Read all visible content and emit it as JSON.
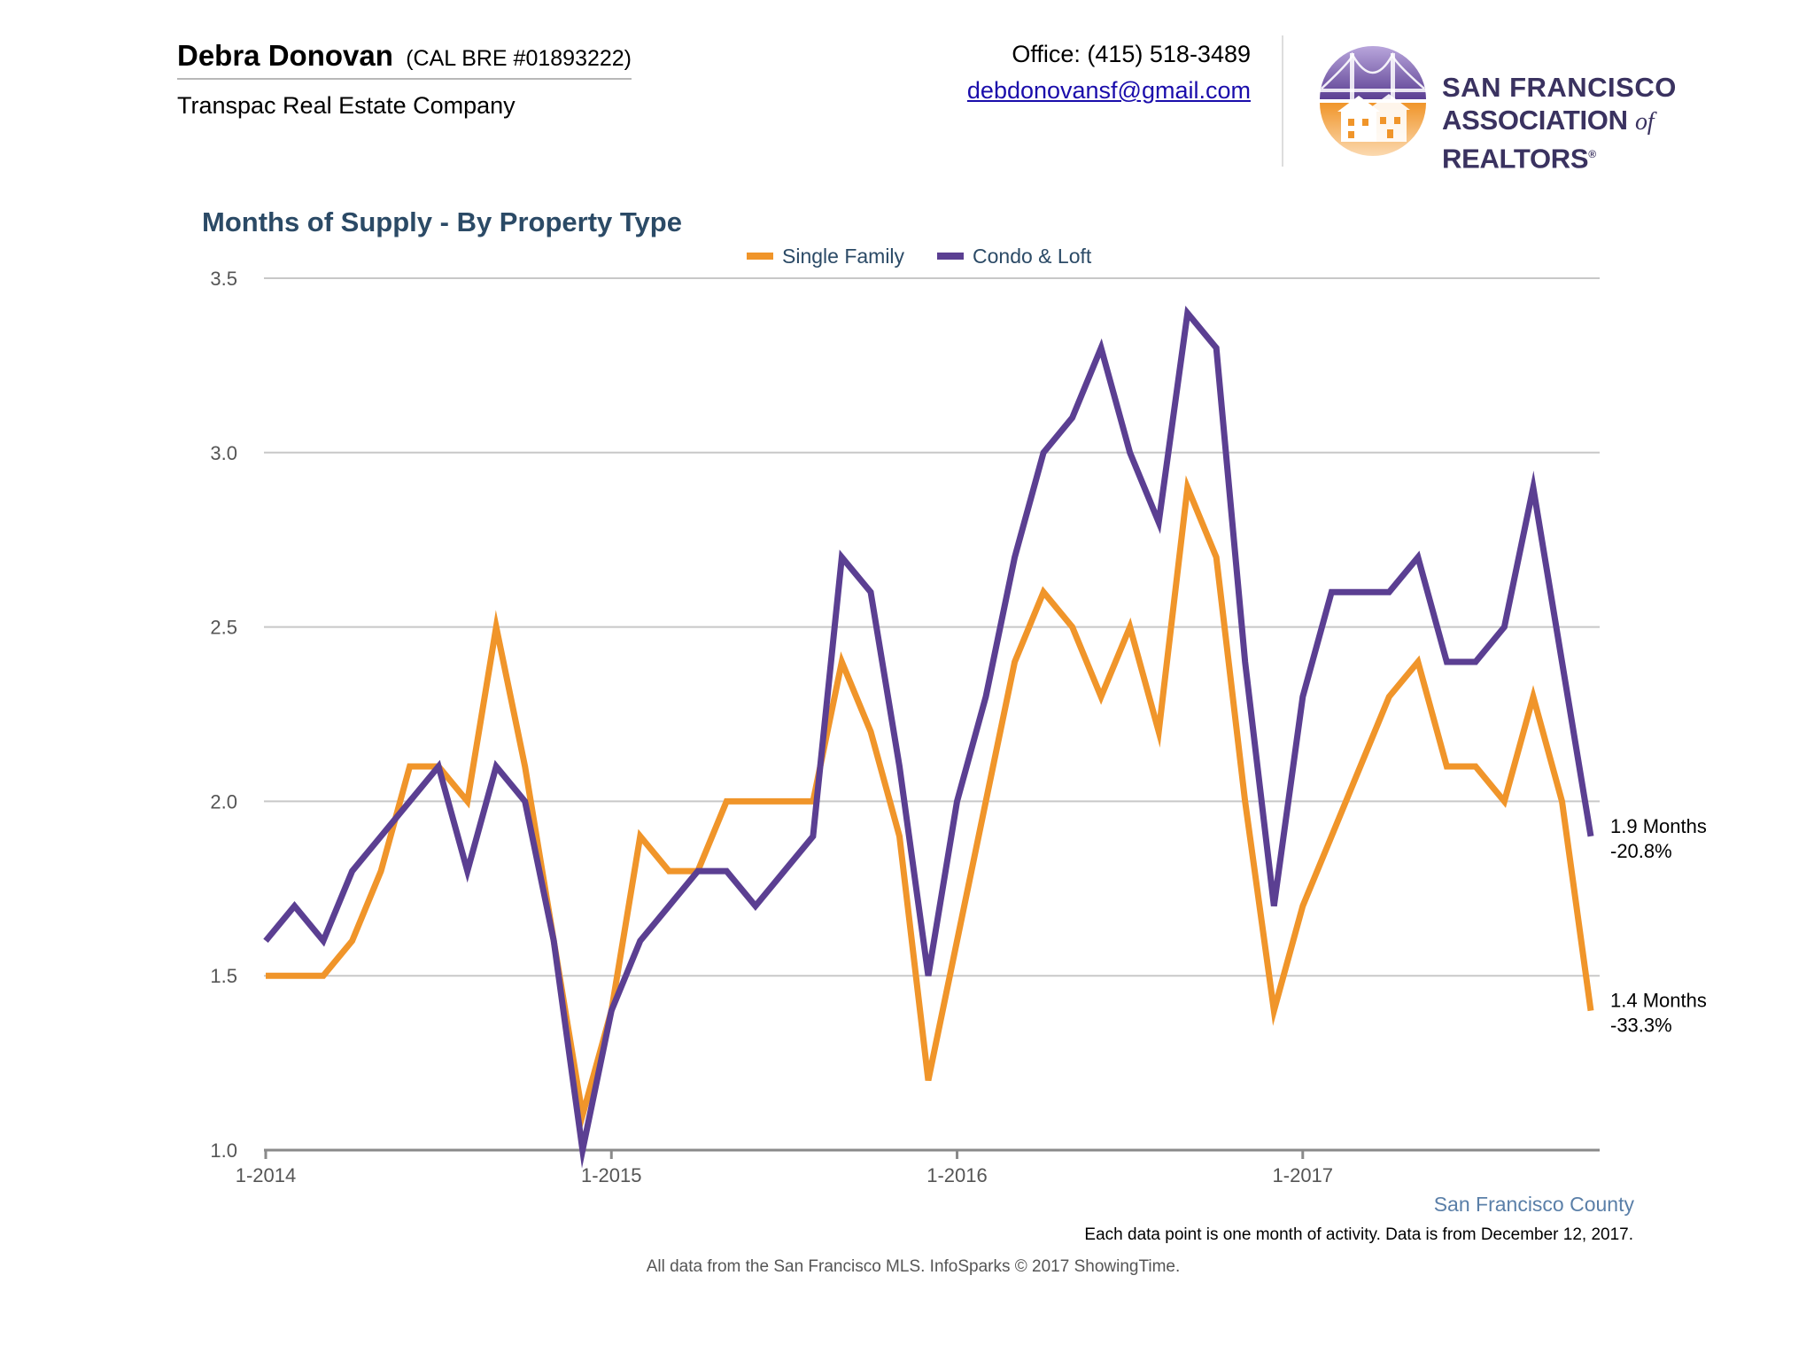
{
  "header": {
    "agent_name": "Debra Donovan",
    "agent_license": "(CAL BRE #01893222)",
    "agent_company": "Transpac Real Estate Company",
    "office_phone": "Office: (415) 518-3489",
    "email": "debdonovansf@gmail.com",
    "logo_line1": "SAN FRANCISCO",
    "logo_line2_a": "ASSOCIATION",
    "logo_line2_of": "of",
    "logo_line2_b": "REALTORS",
    "logo_reg": "®",
    "logo_icon": "golden-gate-houses-icon"
  },
  "colors": {
    "single_family": "#f0952a",
    "condo_loft": "#5b3f92",
    "grid": "#c8c8c8",
    "axis": "#8a8a8a"
  },
  "chart_data": {
    "type": "line",
    "title": "Months of Supply - By Property Type",
    "legend_position": "top-center",
    "grid": true,
    "ylim": [
      1.0,
      3.5
    ],
    "yticks": [
      "1.0",
      "1.5",
      "2.0",
      "2.5",
      "3.0",
      "3.5"
    ],
    "x_start": "2014-01",
    "x_end": "2017-11",
    "xticks": [
      {
        "label": "1-2014",
        "month": "2014-01"
      },
      {
        "label": "1-2015",
        "month": "2015-01"
      },
      {
        "label": "1-2016",
        "month": "2016-01"
      },
      {
        "label": "1-2017",
        "month": "2017-01"
      }
    ],
    "series": [
      {
        "name": "Single Family",
        "color": "#f0952a",
        "values": [
          1.5,
          1.5,
          1.5,
          1.6,
          1.8,
          2.1,
          2.1,
          2.0,
          2.5,
          2.1,
          1.6,
          1.1,
          1.4,
          1.9,
          1.8,
          1.8,
          2.0,
          2.0,
          2.0,
          2.0,
          2.4,
          2.2,
          1.9,
          1.2,
          1.6,
          2.0,
          2.4,
          2.6,
          2.5,
          2.3,
          2.5,
          2.2,
          2.9,
          2.7,
          2.0,
          1.4,
          1.7,
          1.9,
          2.1,
          2.3,
          2.4,
          2.1,
          2.1,
          2.0,
          2.3,
          2.0,
          1.4
        ],
        "end_label": "1.4 Months",
        "end_change": "-33.3%"
      },
      {
        "name": "Condo & Loft",
        "color": "#5b3f92",
        "values": [
          1.6,
          1.7,
          1.6,
          1.8,
          1.9,
          2.0,
          2.1,
          1.8,
          2.1,
          2.0,
          1.6,
          1.0,
          1.4,
          1.6,
          1.7,
          1.8,
          1.8,
          1.7,
          1.8,
          1.9,
          2.7,
          2.6,
          2.1,
          1.5,
          2.0,
          2.3,
          2.7,
          3.0,
          3.1,
          3.3,
          3.0,
          2.8,
          3.4,
          3.3,
          2.4,
          1.7,
          2.3,
          2.6,
          2.6,
          2.6,
          2.7,
          2.4,
          2.4,
          2.5,
          2.9,
          2.4,
          1.9
        ],
        "end_label": "1.9 Months",
        "end_change": "-20.8%"
      }
    ],
    "region_label": "San Francisco County",
    "note": "Each data point is one month of activity. Data is from December 12, 2017."
  },
  "footer": {
    "source": "All data from the San Francisco MLS. InfoSparks © 2017 ShowingTime."
  }
}
